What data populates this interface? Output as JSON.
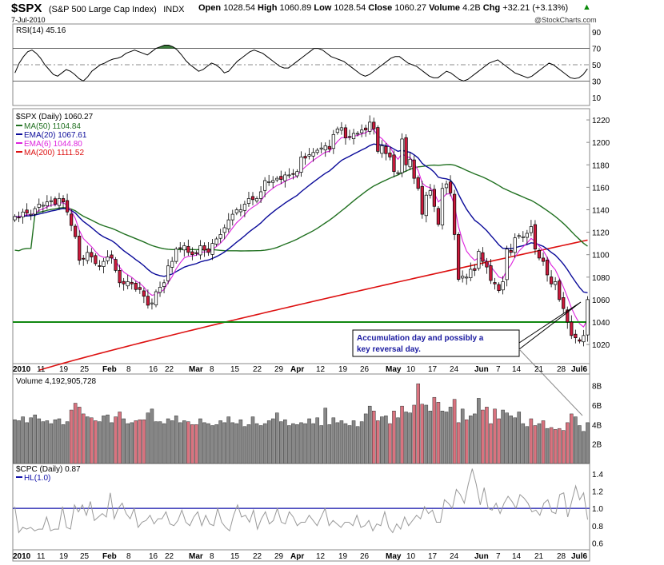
{
  "header": {
    "symbol": "$SPX",
    "name": "(S&P 500 Large Cap Index)",
    "exchange": "INDX",
    "date": "7-Jul-2010",
    "open_label": "Open",
    "open": "1028.54",
    "high_label": "High",
    "high": "1060.89",
    "low_label": "Low",
    "low": "1028.54",
    "close_label": "Close",
    "close": "1060.27",
    "volume_label": "Volume",
    "volume": "4.2B",
    "chg_label": "Chg",
    "chg": "+32.21 (+3.13%)",
    "watermark": "@StockCharts.com"
  },
  "colors": {
    "up": "#ffffff",
    "down": "#cc1a3c",
    "ma50": "#207020",
    "ema20": "#0a0a99",
    "ema6": "#dd22dd",
    "ma200": "#dd1111",
    "support": "#118811",
    "hl": "#1111aa"
  },
  "chart_data": [
    {
      "type": "line",
      "title": "RSI(14) 45.16",
      "ylim": [
        0,
        100
      ],
      "yticks": [
        "90",
        "70",
        "50",
        "30",
        "10"
      ],
      "levels": [
        70,
        50,
        30
      ],
      "series": [
        {
          "name": "RSI(14)",
          "values": [
            40,
            52,
            60,
            66,
            68,
            64,
            58,
            50,
            44,
            38,
            36,
            40,
            44,
            42,
            38,
            33,
            30,
            35,
            42,
            46,
            50,
            52,
            55,
            57,
            58,
            60,
            64,
            66,
            68,
            66,
            64,
            62,
            66,
            70,
            72,
            74,
            74,
            72,
            68,
            62,
            55,
            50,
            46,
            42,
            44,
            48,
            52,
            50,
            46,
            40,
            42,
            48,
            54,
            58,
            62,
            66,
            68,
            66,
            64,
            60,
            56,
            52,
            48,
            46,
            46,
            50,
            54,
            58,
            62,
            66,
            70,
            70,
            68,
            64,
            60,
            58,
            56,
            54,
            50,
            46,
            42,
            38,
            36,
            38,
            42,
            46,
            50,
            54,
            58,
            60,
            60,
            56,
            52,
            50,
            48,
            44,
            40,
            36,
            34,
            34,
            38,
            42,
            40,
            36,
            32,
            30,
            32,
            36,
            40,
            44,
            48,
            52,
            54,
            56,
            52,
            48,
            44,
            40,
            38,
            36,
            34,
            36,
            40,
            44,
            48,
            52,
            50,
            46,
            42,
            38,
            34,
            33,
            34,
            38,
            45
          ]
        }
      ]
    },
    {
      "type": "candlestick",
      "title": "$SPX (Daily) 1060.27",
      "ylim": [
        1003,
        1230
      ],
      "yticks": [
        "1220",
        "1200",
        "1180",
        "1160",
        "1140",
        "1120",
        "1100",
        "1080",
        "1060",
        "1040",
        "1020"
      ],
      "legend": [
        "MA(50) 1104.84",
        "EMA(20) 1067.61",
        "EMA(6) 1044.80",
        "MA(200) 1111.52"
      ],
      "closes": [
        1134,
        1133,
        1138,
        1137,
        1136,
        1141,
        1145,
        1144,
        1147,
        1148,
        1145,
        1150,
        1147,
        1138,
        1126,
        1116,
        1095,
        1096,
        1102,
        1098,
        1092,
        1090,
        1094,
        1098,
        1097,
        1086,
        1075,
        1074,
        1076,
        1074,
        1069,
        1069,
        1063,
        1055,
        1057,
        1067,
        1071,
        1075,
        1090,
        1094,
        1105,
        1106,
        1108,
        1102,
        1100,
        1101,
        1108,
        1104,
        1102,
        1110,
        1114,
        1118,
        1124,
        1131,
        1136,
        1140,
        1140,
        1145,
        1150,
        1149,
        1150,
        1156,
        1166,
        1165,
        1166,
        1168,
        1167,
        1171,
        1171,
        1172,
        1174,
        1187,
        1186,
        1189,
        1191,
        1193,
        1195,
        1197,
        1194,
        1207,
        1212,
        1213,
        1204,
        1205,
        1208,
        1208,
        1211,
        1211,
        1218,
        1212,
        1192,
        1197,
        1190,
        1187,
        1174,
        1173,
        1203,
        1180,
        1185,
        1168,
        1159,
        1136,
        1153,
        1157,
        1143,
        1127,
        1159,
        1163,
        1155,
        1118,
        1078,
        1081,
        1080,
        1087,
        1086,
        1103,
        1094,
        1089,
        1077,
        1074,
        1068,
        1076,
        1105,
        1102,
        1115,
        1117,
        1116,
        1119,
        1125,
        1105,
        1097,
        1094,
        1082,
        1074,
        1076,
        1060,
        1052,
        1040,
        1028,
        1026,
        1023,
        1028,
        1060
      ],
      "open_last": 1028.54,
      "support_level": 1040,
      "annotation": "Accumulation day and possibly a key reversal day."
    },
    {
      "type": "bar",
      "title": "Volume 4,192,905,728",
      "ylim": [
        0,
        9.2
      ],
      "yticks": [
        "8B",
        "6B",
        "4B",
        "2B"
      ],
      "values": [
        4.5,
        4.4,
        4.8,
        4.2,
        4.7,
        5,
        4.6,
        4.3,
        4.4,
        4.1,
        4.5,
        4.6,
        4,
        4.3,
        5.5,
        6.2,
        5.8,
        5.1,
        4.8,
        4.7,
        4.4,
        4.3,
        4.9,
        5,
        4.2,
        4.8,
        5.3,
        4.6,
        4.1,
        4.2,
        4.4,
        4.5,
        4.5,
        5.2,
        5.6,
        4.3,
        4.3,
        4.1,
        4.6,
        4.4,
        4.9,
        4.2,
        4.4,
        4.3,
        4,
        4,
        4.6,
        4.2,
        4.1,
        3.9,
        4,
        4.4,
        4.2,
        4.8,
        4.2,
        4.1,
        4.5,
        3.8,
        4,
        4.8,
        4.1,
        3.9,
        4.1,
        4.4,
        4.6,
        5.2,
        4.3,
        4.5,
        3.9,
        4.1,
        4,
        4.2,
        4.1,
        4.6,
        4.1,
        4.7,
        3.9,
        5.7,
        4,
        4.7,
        4.2,
        4.4,
        4.1,
        3.9,
        4.4,
        3.8,
        4.3,
        5.1,
        5.9,
        5.4,
        4.4,
        4.8,
        4.9,
        4.1,
        5.4,
        4.7,
        5.9,
        5.3,
        5.2,
        6,
        8.2,
        6.1,
        6,
        5.4,
        6.8,
        6.3,
        5.4,
        5.3,
        5.8,
        6.6,
        4.2,
        5.6,
        4.5,
        4.9,
        5.1,
        6.7,
        5.5,
        5.8,
        4.1,
        5.6,
        4.6,
        5.5,
        5.2,
        4.9,
        4.7,
        5.3,
        4.1,
        3.8,
        4.6,
        3.9,
        4.1,
        4.4,
        3.6,
        3.7,
        3.5,
        3.6,
        3.4,
        4.2,
        5.1,
        4.8,
        3.9,
        3.3,
        4.2
      ],
      "down_days": [
        14,
        15,
        16,
        17,
        19,
        20,
        25,
        26,
        30,
        31,
        32,
        43,
        44,
        45,
        89,
        90,
        93,
        94,
        96,
        99,
        100,
        101,
        104,
        105,
        109,
        110,
        112,
        116,
        117,
        118,
        119,
        120,
        128,
        129,
        131,
        133,
        134,
        135,
        136,
        137,
        138
      ]
    },
    {
      "type": "line",
      "title": "$CPC (Daily) 0.87",
      "legend": [
        "HL(1.0)"
      ],
      "ylim": [
        0.52,
        1.52
      ],
      "yticks": [
        "1.4",
        "1.2",
        "1.0",
        "0.8",
        "0.6"
      ],
      "hline": 1.0,
      "series": [
        {
          "name": "$CPC",
          "values": [
            1.02,
            0.72,
            0.78,
            0.76,
            0.78,
            0.74,
            0.76,
            0.76,
            0.9,
            0.74,
            0.76,
            0.76,
            1.02,
            0.78,
            0.76,
            1.04,
            0.96,
            1.04,
            0.92,
            1.08,
            0.86,
            0.9,
            0.94,
            0.9,
            1.18,
            0.88,
            1.0,
            1.06,
            0.94,
            0.88,
            1.0,
            0.78,
            0.84,
            0.86,
            0.92,
            0.82,
            0.88,
            0.88,
            0.96,
            0.82,
            0.8,
            0.86,
            0.98,
            0.84,
            0.8,
            0.9,
            0.96,
            0.8,
            0.92,
            0.82,
            0.8,
            1.0,
            0.84,
            0.78,
            0.74,
            0.92,
            1.04,
            0.9,
            0.92,
            0.84,
            0.98,
            0.76,
            0.88,
            0.96,
            0.82,
            0.86,
            1.0,
            0.84,
            0.82,
            0.96,
            0.9,
            0.8,
            0.84,
            0.84,
            0.92,
            0.86,
            0.8,
            0.9,
            1.0,
            0.8,
            0.86,
            0.82,
            0.78,
            0.84,
            0.84,
            0.8,
            0.92,
            0.78,
            0.8,
            0.86,
            0.74,
            0.82,
            0.8,
            0.96,
            0.78,
            0.72,
            0.82,
            0.76,
            0.9,
            0.8,
            0.86,
            0.92,
            0.88,
            1.02,
            0.94,
            0.98,
            0.84,
            0.84,
            1.1,
            1.06,
            1.0,
            1.22,
            1.16,
            1.06,
            1.28,
            1.46,
            1.28,
            1.04,
            1.24,
            1.0,
            0.98,
            1.06,
            0.94,
            1.06,
            1.14,
            1.08,
            1.0,
            1.16,
            1.12,
            1.06,
            0.96,
            0.98,
            0.92,
            1.06,
            1.1,
            0.96,
            0.94,
            1.16,
            1.18,
            0.9,
            1.08,
            1.26,
            1.1,
            1.18,
            0.87
          ]
        }
      ]
    }
  ],
  "x_axis": {
    "top_labels": [
      "2010",
      "11",
      "19",
      "25",
      "Feb",
      "8",
      "16",
      "22",
      "Mar",
      "8",
      "15",
      "22",
      "29",
      "Apr",
      "12",
      "19",
      "26",
      "May",
      "10",
      "17",
      "24",
      "Jun",
      "7",
      "14",
      "21",
      "28",
      "Jul6"
    ],
    "bottom_labels": [
      "2010",
      "11",
      "19",
      "25",
      "Feb",
      "8",
      "16",
      "22",
      "Mar",
      "8",
      "15",
      "22",
      "29",
      "Apr",
      "12",
      "19",
      "26",
      "May",
      "10",
      "17",
      "24",
      "Jun",
      "7",
      "14",
      "21",
      "28",
      "Jul6"
    ]
  }
}
